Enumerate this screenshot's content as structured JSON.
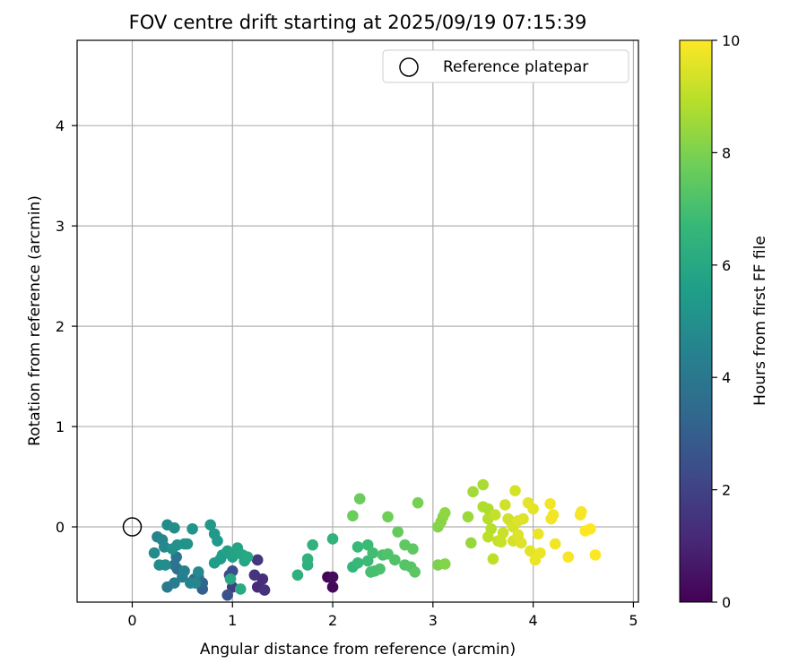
{
  "chart_data": {
    "type": "scatter",
    "title": "FOV centre drift starting at 2025/09/19 07:15:39",
    "xlabel": "Angular distance from reference (arcmin)",
    "ylabel": "Rotation from reference (arcmin)",
    "xlim": [
      -0.55,
      5.05
    ],
    "ylim": [
      -0.75,
      4.85
    ],
    "xticks": [
      0,
      1,
      2,
      3,
      4,
      5
    ],
    "yticks": [
      0,
      1,
      2,
      3,
      4
    ],
    "grid": true,
    "legend": {
      "position": "top-right",
      "label": "Reference platepar"
    },
    "reference_point": {
      "x": 0,
      "y": 0
    },
    "colorbar": {
      "label": "Hours from first FF file",
      "min": 0,
      "max": 10,
      "ticks": [
        0,
        2,
        4,
        6,
        8,
        10
      ],
      "colormap": "viridis",
      "stops": [
        "#440154",
        "#482878",
        "#3e4989",
        "#31688e",
        "#26828e",
        "#1f9e89",
        "#35b779",
        "#6ece58",
        "#b5de2b",
        "#fde725"
      ]
    },
    "points": [
      {
        "x": 1.95,
        "y": -0.5,
        "c": 0.1
      },
      {
        "x": 2.0,
        "y": -0.6,
        "c": 0.2
      },
      {
        "x": 2.0,
        "y": -0.5,
        "c": 0.3
      },
      {
        "x": 1.25,
        "y": -0.6,
        "c": 1.2
      },
      {
        "x": 1.3,
        "y": -0.52,
        "c": 1.3
      },
      {
        "x": 1.32,
        "y": -0.63,
        "c": 1.4
      },
      {
        "x": 1.22,
        "y": -0.48,
        "c": 1.5
      },
      {
        "x": 1.25,
        "y": -0.33,
        "c": 1.6
      },
      {
        "x": 1.0,
        "y": -0.6,
        "c": 1.9
      },
      {
        "x": 0.97,
        "y": -0.48,
        "c": 2.2
      },
      {
        "x": 1.0,
        "y": -0.44,
        "c": 2.4
      },
      {
        "x": 0.95,
        "y": -0.68,
        "c": 2.5
      },
      {
        "x": 0.7,
        "y": -0.62,
        "c": 3.0
      },
      {
        "x": 0.7,
        "y": -0.56,
        "c": 3.2
      },
      {
        "x": 0.66,
        "y": -0.5,
        "c": 3.4
      },
      {
        "x": 0.62,
        "y": -0.52,
        "c": 3.5
      },
      {
        "x": 0.45,
        "y": -0.42,
        "c": 3.7
      },
      {
        "x": 0.42,
        "y": -0.38,
        "c": 3.8
      },
      {
        "x": 0.44,
        "y": -0.3,
        "c": 3.9
      },
      {
        "x": 0.35,
        "y": -0.6,
        "c": 4.1
      },
      {
        "x": 0.42,
        "y": -0.56,
        "c": 4.2
      },
      {
        "x": 0.5,
        "y": -0.5,
        "c": 4.3
      },
      {
        "x": 0.52,
        "y": -0.44,
        "c": 4.4
      },
      {
        "x": 0.58,
        "y": -0.56,
        "c": 4.5
      },
      {
        "x": 0.63,
        "y": -0.56,
        "c": 4.6
      },
      {
        "x": 0.66,
        "y": -0.45,
        "c": 4.7
      },
      {
        "x": 0.35,
        "y": 0.02,
        "c": 4.8
      },
      {
        "x": 0.42,
        "y": -0.01,
        "c": 4.9
      },
      {
        "x": 0.25,
        "y": -0.1,
        "c": 4.5
      },
      {
        "x": 0.3,
        "y": -0.13,
        "c": 4.6
      },
      {
        "x": 0.32,
        "y": -0.2,
        "c": 4.7
      },
      {
        "x": 0.22,
        "y": -0.26,
        "c": 4.8
      },
      {
        "x": 0.27,
        "y": -0.38,
        "c": 4.8
      },
      {
        "x": 0.33,
        "y": -0.38,
        "c": 4.9
      },
      {
        "x": 0.4,
        "y": -0.22,
        "c": 5.0
      },
      {
        "x": 0.45,
        "y": -0.18,
        "c": 5.0
      },
      {
        "x": 0.52,
        "y": -0.17,
        "c": 5.1
      },
      {
        "x": 0.55,
        "y": -0.17,
        "c": 5.1
      },
      {
        "x": 0.6,
        "y": -0.02,
        "c": 5.2
      },
      {
        "x": 0.78,
        "y": 0.02,
        "c": 5.3
      },
      {
        "x": 0.82,
        "y": -0.07,
        "c": 5.3
      },
      {
        "x": 0.85,
        "y": -0.14,
        "c": 5.4
      },
      {
        "x": 0.82,
        "y": -0.36,
        "c": 5.5
      },
      {
        "x": 0.88,
        "y": -0.32,
        "c": 5.5
      },
      {
        "x": 0.9,
        "y": -0.28,
        "c": 5.6
      },
      {
        "x": 0.95,
        "y": -0.24,
        "c": 5.7
      },
      {
        "x": 1.0,
        "y": -0.3,
        "c": 5.7
      },
      {
        "x": 1.02,
        "y": -0.25,
        "c": 5.8
      },
      {
        "x": 1.05,
        "y": -0.21,
        "c": 5.8
      },
      {
        "x": 1.1,
        "y": -0.28,
        "c": 5.9
      },
      {
        "x": 1.12,
        "y": -0.34,
        "c": 5.9
      },
      {
        "x": 1.15,
        "y": -0.3,
        "c": 6.0
      },
      {
        "x": 0.98,
        "y": -0.52,
        "c": 6.0
      },
      {
        "x": 1.08,
        "y": -0.62,
        "c": 6.1
      },
      {
        "x": 1.65,
        "y": -0.48,
        "c": 6.3
      },
      {
        "x": 1.75,
        "y": -0.38,
        "c": 6.3
      },
      {
        "x": 1.75,
        "y": -0.32,
        "c": 6.4
      },
      {
        "x": 1.8,
        "y": -0.18,
        "c": 6.4
      },
      {
        "x": 2.0,
        "y": -0.12,
        "c": 6.5
      },
      {
        "x": 2.2,
        "y": -0.4,
        "c": 6.6
      },
      {
        "x": 2.25,
        "y": -0.36,
        "c": 6.7
      },
      {
        "x": 2.25,
        "y": -0.2,
        "c": 6.7
      },
      {
        "x": 2.35,
        "y": -0.34,
        "c": 6.8
      },
      {
        "x": 2.35,
        "y": -0.18,
        "c": 6.8
      },
      {
        "x": 2.4,
        "y": -0.26,
        "c": 6.9
      },
      {
        "x": 2.38,
        "y": -0.45,
        "c": 7.0
      },
      {
        "x": 2.42,
        "y": -0.44,
        "c": 7.0
      },
      {
        "x": 2.47,
        "y": -0.42,
        "c": 7.1
      },
      {
        "x": 2.5,
        "y": -0.28,
        "c": 7.1
      },
      {
        "x": 2.55,
        "y": -0.27,
        "c": 7.2
      },
      {
        "x": 2.62,
        "y": -0.33,
        "c": 7.2
      },
      {
        "x": 2.72,
        "y": -0.38,
        "c": 7.3
      },
      {
        "x": 2.78,
        "y": -0.4,
        "c": 7.3
      },
      {
        "x": 2.82,
        "y": -0.45,
        "c": 7.4
      },
      {
        "x": 2.72,
        "y": -0.18,
        "c": 7.5
      },
      {
        "x": 2.8,
        "y": -0.22,
        "c": 7.5
      },
      {
        "x": 2.65,
        "y": -0.05,
        "c": 7.6
      },
      {
        "x": 2.2,
        "y": 0.11,
        "c": 7.7
      },
      {
        "x": 2.27,
        "y": 0.28,
        "c": 7.7
      },
      {
        "x": 2.55,
        "y": 0.1,
        "c": 7.8
      },
      {
        "x": 2.85,
        "y": 0.24,
        "c": 7.9
      },
      {
        "x": 3.05,
        "y": -0.38,
        "c": 8.0
      },
      {
        "x": 3.12,
        "y": -0.37,
        "c": 8.1
      },
      {
        "x": 3.05,
        "y": 0.0,
        "c": 8.1
      },
      {
        "x": 3.08,
        "y": 0.05,
        "c": 8.2
      },
      {
        "x": 3.1,
        "y": 0.1,
        "c": 8.2
      },
      {
        "x": 3.12,
        "y": 0.14,
        "c": 8.3
      },
      {
        "x": 3.38,
        "y": -0.16,
        "c": 8.4
      },
      {
        "x": 3.35,
        "y": 0.1,
        "c": 8.5
      },
      {
        "x": 3.4,
        "y": 0.35,
        "c": 8.6
      },
      {
        "x": 3.5,
        "y": 0.42,
        "c": 8.7
      },
      {
        "x": 3.5,
        "y": 0.2,
        "c": 8.8
      },
      {
        "x": 3.55,
        "y": 0.18,
        "c": 8.8
      },
      {
        "x": 3.55,
        "y": 0.08,
        "c": 8.9
      },
      {
        "x": 3.58,
        "y": -0.02,
        "c": 8.9
      },
      {
        "x": 3.55,
        "y": -0.1,
        "c": 9.0
      },
      {
        "x": 3.6,
        "y": -0.32,
        "c": 9.0
      },
      {
        "x": 3.62,
        "y": 0.12,
        "c": 9.1
      },
      {
        "x": 3.65,
        "y": -0.14,
        "c": 9.1
      },
      {
        "x": 3.68,
        "y": -0.15,
        "c": 9.2
      },
      {
        "x": 3.7,
        "y": -0.06,
        "c": 9.2
      },
      {
        "x": 3.72,
        "y": 0.22,
        "c": 9.3
      },
      {
        "x": 3.75,
        "y": 0.08,
        "c": 9.3
      },
      {
        "x": 3.78,
        "y": 0.05,
        "c": 9.3
      },
      {
        "x": 3.8,
        "y": 0.0,
        "c": 9.4
      },
      {
        "x": 3.8,
        "y": -0.14,
        "c": 9.4
      },
      {
        "x": 3.82,
        "y": 0.36,
        "c": 9.4
      },
      {
        "x": 3.85,
        "y": -0.08,
        "c": 9.5
      },
      {
        "x": 3.85,
        "y": 0.06,
        "c": 9.5
      },
      {
        "x": 3.88,
        "y": -0.16,
        "c": 9.5
      },
      {
        "x": 3.9,
        "y": 0.08,
        "c": 9.5
      },
      {
        "x": 3.95,
        "y": 0.24,
        "c": 9.6
      },
      {
        "x": 3.97,
        "y": -0.24,
        "c": 9.6
      },
      {
        "x": 4.0,
        "y": 0.18,
        "c": 9.6
      },
      {
        "x": 4.02,
        "y": -0.33,
        "c": 9.7
      },
      {
        "x": 4.05,
        "y": -0.07,
        "c": 9.7
      },
      {
        "x": 4.07,
        "y": -0.26,
        "c": 9.7
      },
      {
        "x": 4.17,
        "y": 0.23,
        "c": 9.8
      },
      {
        "x": 4.18,
        "y": 0.08,
        "c": 9.8
      },
      {
        "x": 4.2,
        "y": 0.12,
        "c": 9.8
      },
      {
        "x": 4.22,
        "y": -0.17,
        "c": 9.8
      },
      {
        "x": 4.35,
        "y": -0.3,
        "c": 9.9
      },
      {
        "x": 4.47,
        "y": 0.12,
        "c": 9.9
      },
      {
        "x": 4.48,
        "y": 0.15,
        "c": 9.9
      },
      {
        "x": 4.52,
        "y": -0.04,
        "c": 10.0
      },
      {
        "x": 4.57,
        "y": -0.02,
        "c": 10.0
      },
      {
        "x": 4.62,
        "y": -0.28,
        "c": 10.0
      }
    ]
  }
}
